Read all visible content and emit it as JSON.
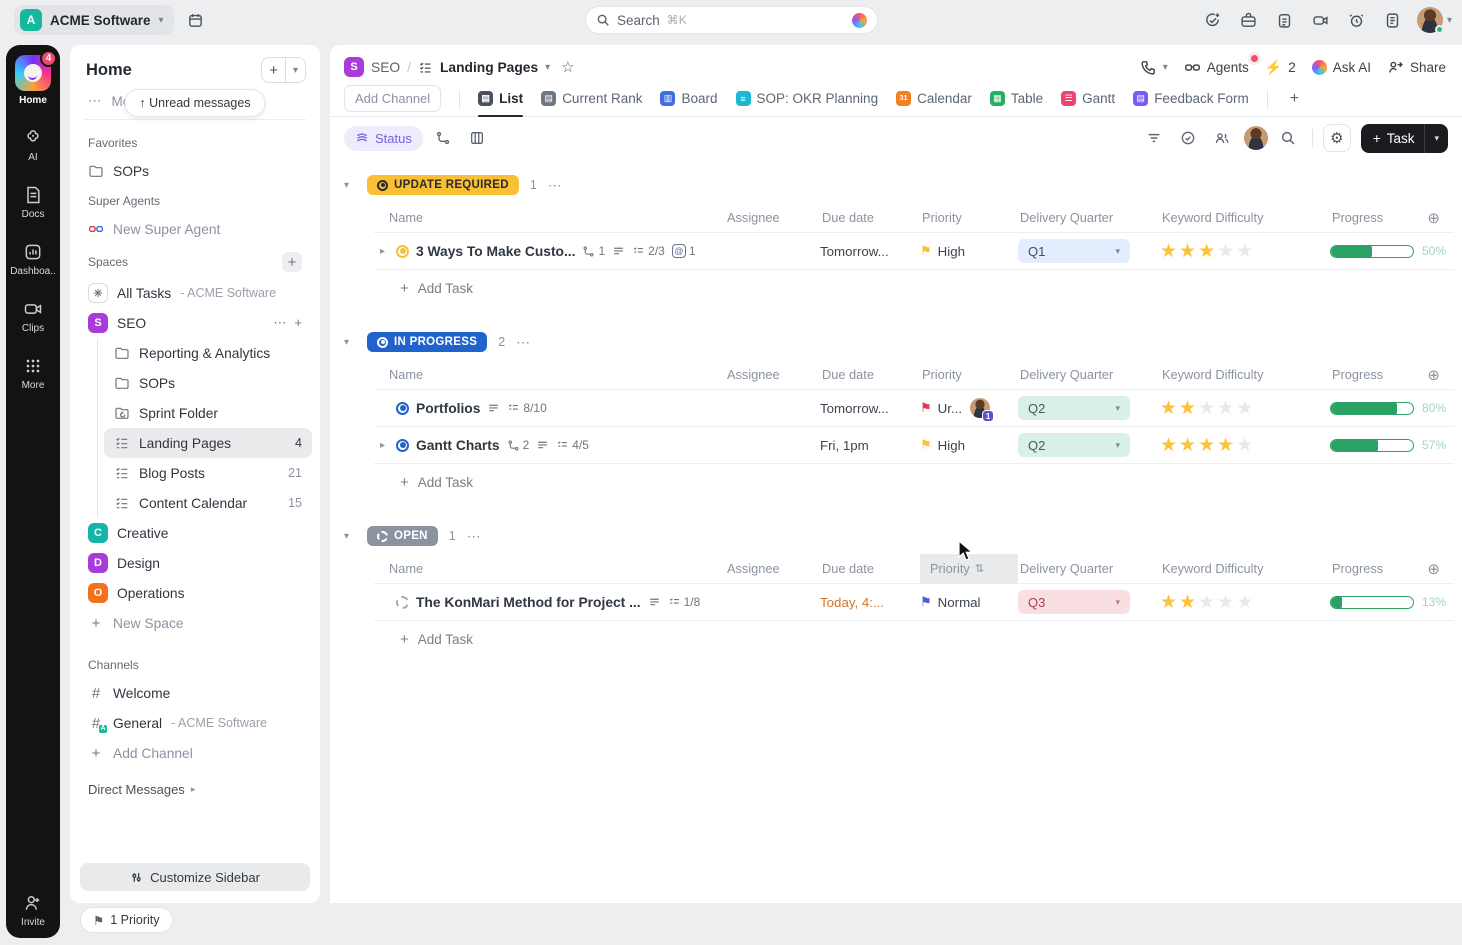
{
  "icons": {
    "chevron_down": "▾",
    "expand": "▸",
    "dots": "⋯",
    "plus": "+",
    "circle_plus": "⊕",
    "up_arrow": "↑",
    "star_outline": "☆",
    "flag": "⚑",
    "hash": "#",
    "at": "@",
    "bolt": "⚡",
    "gear": "⚙",
    "sort": "⇅",
    "slash": "/",
    "asterisk": "✳"
  },
  "topbar": {
    "workspace": {
      "initial": "A",
      "name": "ACME Software"
    },
    "search": {
      "label": "Search",
      "shortcut": "⌘K"
    },
    "online_color": "#23c16b"
  },
  "rail": {
    "home": {
      "label": "Home",
      "badge": "4"
    },
    "items": [
      {
        "label": "AI"
      },
      {
        "label": "Docs"
      },
      {
        "label": "Dashboa.."
      },
      {
        "label": "Clips"
      },
      {
        "label": "More"
      }
    ],
    "invite": "Invite"
  },
  "sidebar": {
    "title": "Home",
    "more": "More",
    "unread": "Unread messages",
    "favorites_title": "Favorites",
    "favorite_sops": "SOPs",
    "super_agents_title": "Super Agents",
    "super_agent": "New Super Agent",
    "spaces_title": "Spaces",
    "all_tasks": {
      "label": "All Tasks",
      "suffix": "- ACME Software"
    },
    "seo": {
      "initial": "S",
      "label": "SEO",
      "color": "#a83bd9"
    },
    "seo_children": [
      {
        "label": "Reporting & Analytics"
      },
      {
        "label": "SOPs"
      },
      {
        "label": "Sprint Folder"
      }
    ],
    "seo_lists": [
      {
        "label": "Landing Pages",
        "count": "4"
      },
      {
        "label": "Blog Posts",
        "count": "21"
      },
      {
        "label": "Content Calendar",
        "count": "15"
      }
    ],
    "spaces": [
      {
        "initial": "C",
        "label": "Creative",
        "color": "#15b3a8"
      },
      {
        "initial": "D",
        "label": "Design",
        "color": "#a83bd9"
      },
      {
        "initial": "O",
        "label": "Operations",
        "color": "#f4701d"
      }
    ],
    "new_space": "New Space",
    "channels_title": "Channels",
    "channel_welcome": "Welcome",
    "channel_general": {
      "label": "General",
      "suffix": "- ACME Software",
      "badge": "A"
    },
    "add_channel": "Add Channel",
    "direct_messages": "Direct Messages",
    "customize": "Customize Sidebar",
    "priority_pill": "1 Priority"
  },
  "main": {
    "breadcrumb": {
      "space_initial": "S",
      "space": "SEO",
      "list": "Landing Pages"
    },
    "header_actions": {
      "agents": "Agents",
      "boost_count": "2",
      "ask_ai": "Ask AI",
      "share": "Share"
    },
    "add_channel": "Add Channel",
    "tabs": [
      {
        "label": "List",
        "color": "#49505c"
      },
      {
        "label": "Current Rank",
        "color": "#6f7684"
      },
      {
        "label": "Board",
        "color": "#3e6de0"
      },
      {
        "label": "SOP: OKR Planning",
        "color": "#1cb8d4"
      },
      {
        "label": "Calendar",
        "color": "#f4811f"
      },
      {
        "label": "Table",
        "color": "#27ae60"
      },
      {
        "label": "Gantt",
        "color": "#e8486d"
      },
      {
        "label": "Feedback Form",
        "color": "#7a5af8"
      }
    ],
    "toolbar": {
      "group_by": "Status",
      "task_button": "Task"
    },
    "columns": [
      "Name",
      "Assignee",
      "Due date",
      "Priority",
      "Delivery Quarter",
      "Keyword Difficulty",
      "Progress"
    ],
    "groups": [
      {
        "status": "UPDATE REQUIRED",
        "bg": "#f9bf35",
        "fg": "#2b2b2b",
        "count": "1",
        "add_task": "Add Task",
        "rows": [
          {
            "name": "3 Ways To Make Custo...",
            "links": "1",
            "checklist": "2/3",
            "mentions": "1",
            "due": "Tomorrow...",
            "priority": {
              "label": "High",
              "color": "#fcbf2e"
            },
            "quarter": {
              "label": "Q1",
              "bg": "#e3edfd",
              "fg": "#3f4c66"
            },
            "stars": 3,
            "progress": 50,
            "progress_label": "50%"
          }
        ]
      },
      {
        "status": "IN PROGRESS",
        "bg": "#2162cb",
        "fg": "#ffffff",
        "count": "2",
        "add_task": "Add Task",
        "rows": [
          {
            "name": "Portfolios",
            "checklist": "8/10",
            "due": "Tomorrow...",
            "priority": {
              "label": "Ur...",
              "color": "#e23b57",
              "badge": "1"
            },
            "quarter": {
              "label": "Q2",
              "bg": "#d9efe9",
              "fg": "#3d5f55"
            },
            "stars": 2,
            "progress": 80,
            "progress_label": "80%"
          },
          {
            "name": "Gantt Charts",
            "links": "2",
            "checklist": "4/5",
            "due": "Fri, 1pm",
            "priority": {
              "label": "High",
              "color": "#fcbf2e"
            },
            "quarter": {
              "label": "Q2",
              "bg": "#d9efe9",
              "fg": "#3d5f55"
            },
            "stars": 4,
            "progress": 57,
            "progress_label": "57%"
          }
        ]
      },
      {
        "status": "OPEN",
        "bg": "#8b93a1",
        "fg": "#ffffff",
        "count": "1",
        "add_task": "Add Task",
        "rows": [
          {
            "name": "The KonMari Method for Project ...",
            "checklist": "1/8",
            "due": "Today, 4:...",
            "priority": {
              "label": "Normal",
              "color": "#4b5bdc"
            },
            "quarter": {
              "label": "Q3",
              "bg": "#fadfe2",
              "fg": "#a94250"
            },
            "stars": 2,
            "progress": 13,
            "progress_label": "13%"
          }
        ]
      }
    ]
  }
}
